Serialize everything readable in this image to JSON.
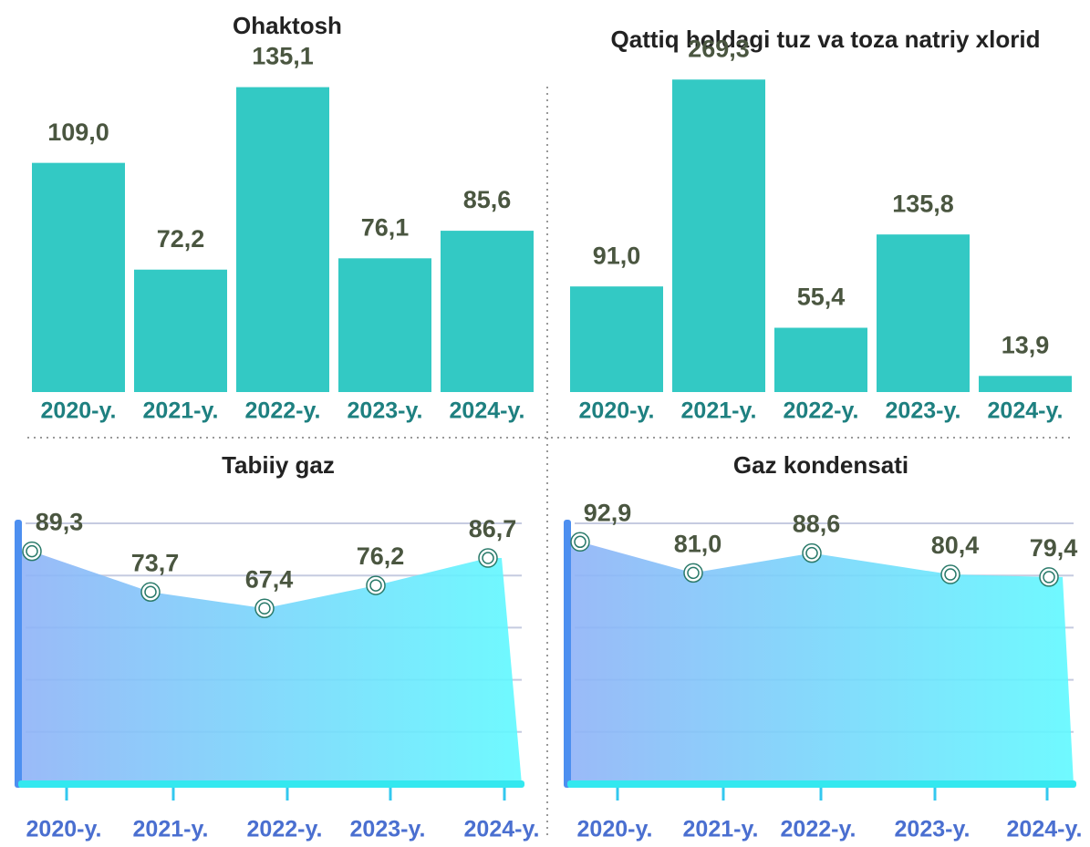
{
  "chart_data": [
    {
      "type": "bar",
      "title": "Ohaktosh",
      "categories": [
        "2020-y.",
        "2021-y.",
        "2022-y.",
        "2023-y.",
        "2024-y."
      ],
      "values": [
        109.0,
        72.2,
        135.1,
        76.1,
        85.6
      ],
      "value_labels": [
        "109,0",
        "72,2",
        "135,1",
        "76,1",
        "85,6"
      ],
      "color": "#33c9c4",
      "ylim": [
        30,
        140
      ]
    },
    {
      "type": "bar",
      "title": "Qattiq holdagi tuz va toza natriy xlorid",
      "categories": [
        "2020-y.",
        "2021-y.",
        "2022-y.",
        "2023-y.",
        "2024-y."
      ],
      "values": [
        91.0,
        269.3,
        55.4,
        135.8,
        13.9
      ],
      "value_labels": [
        "91,0",
        "269,3",
        "55,4",
        "135,8",
        "13,9"
      ],
      "color": "#33c9c4",
      "ylim": [
        0,
        275
      ]
    },
    {
      "type": "line",
      "title": "Tabiiy gaz",
      "categories": [
        "2020-y.",
        "2021-y.",
        "2022-y.",
        "2023-y.",
        "2024-y."
      ],
      "values": [
        89.3,
        73.7,
        67.4,
        76.2,
        86.7
      ],
      "value_labels": [
        "89,3",
        "73,7",
        "67,4",
        "76,2",
        "86,7"
      ],
      "color": "#5ff7ff",
      "ylim": [
        0,
        100
      ],
      "yticks": [
        20,
        40,
        60,
        80,
        100
      ],
      "grid": true
    },
    {
      "type": "line",
      "title": "Gaz kondensati",
      "categories": [
        "2020-y.",
        "2021-y.",
        "2022-y.",
        "2023-y.",
        "2024-y."
      ],
      "values": [
        92.9,
        81.0,
        88.6,
        80.4,
        79.4
      ],
      "value_labels": [
        "92,9",
        "81,0",
        "88,6",
        "80,4",
        "79,4"
      ],
      "color": "#5ff7ff",
      "ylim": [
        0,
        100
      ],
      "yticks": [
        20,
        40,
        60,
        80,
        100
      ],
      "grid": true
    }
  ]
}
